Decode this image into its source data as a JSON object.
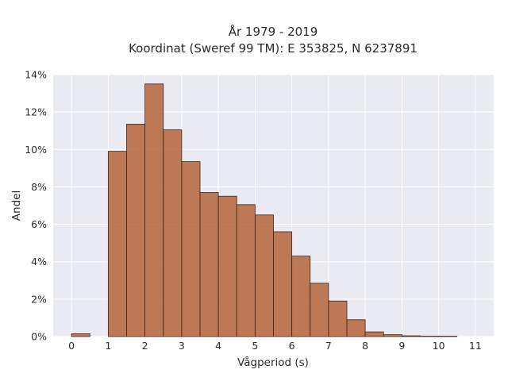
{
  "chart_data": {
    "type": "bar",
    "title_line1": "År 1979 - 2019",
    "title_line2": "Koordinat (Sweref 99 TM): E 353825, N 6237891",
    "xlabel": "Vågperiod (s)",
    "ylabel": "Andel",
    "xlim": [
      -0.5,
      11.5
    ],
    "ylim": [
      0,
      14
    ],
    "x_ticks": [
      "0",
      "1",
      "2",
      "3",
      "4",
      "5",
      "6",
      "7",
      "8",
      "9",
      "10",
      "11"
    ],
    "y_ticks": [
      "0%",
      "2%",
      "4%",
      "6%",
      "8%",
      "10%",
      "12%",
      "14%"
    ],
    "bin_width": 0.5,
    "bins": [
      {
        "x_start": 0.0,
        "value": 0.15
      },
      {
        "x_start": 1.0,
        "value": 9.9
      },
      {
        "x_start": 1.5,
        "value": 11.35
      },
      {
        "x_start": 2.0,
        "value": 13.5
      },
      {
        "x_start": 2.5,
        "value": 11.05
      },
      {
        "x_start": 3.0,
        "value": 9.35
      },
      {
        "x_start": 3.5,
        "value": 7.7
      },
      {
        "x_start": 4.0,
        "value": 7.5
      },
      {
        "x_start": 4.5,
        "value": 7.05
      },
      {
        "x_start": 5.0,
        "value": 6.5
      },
      {
        "x_start": 5.5,
        "value": 5.6
      },
      {
        "x_start": 6.0,
        "value": 4.3
      },
      {
        "x_start": 6.5,
        "value": 2.85
      },
      {
        "x_start": 7.0,
        "value": 1.9
      },
      {
        "x_start": 7.5,
        "value": 0.9
      },
      {
        "x_start": 8.0,
        "value": 0.25
      },
      {
        "x_start": 8.5,
        "value": 0.1
      },
      {
        "x_start": 9.0,
        "value": 0.04
      },
      {
        "x_start": 9.5,
        "value": 0.02
      },
      {
        "x_start": 10.0,
        "value": 0.02
      }
    ],
    "grid": true,
    "bar_color": "#b5653a",
    "background_color": "#eaeaf2"
  }
}
